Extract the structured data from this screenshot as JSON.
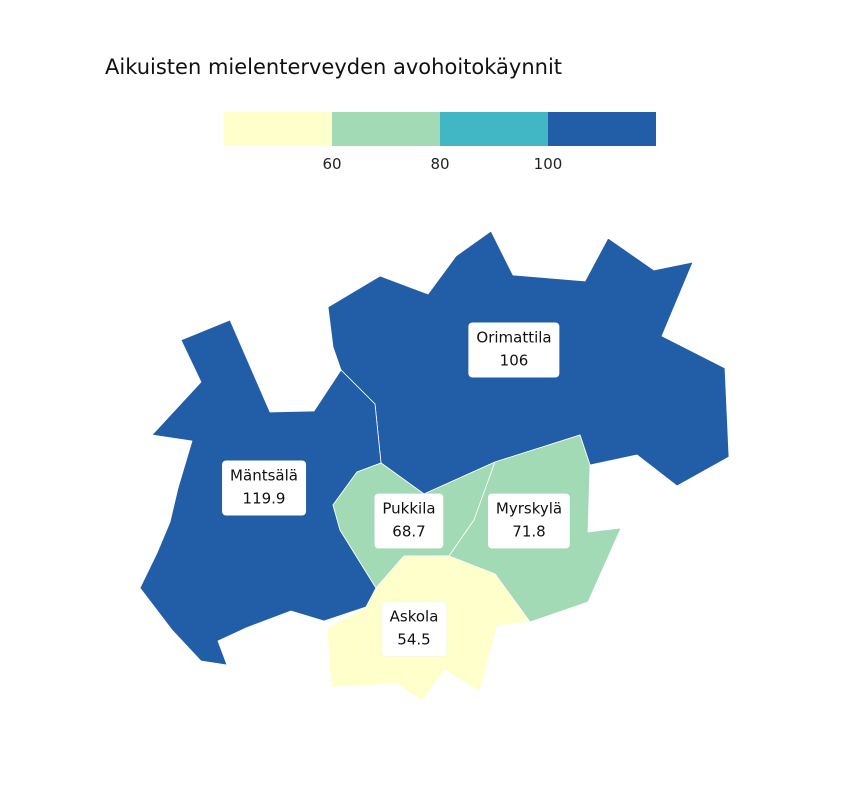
{
  "title": "Aikuisten mielenterveyden avohoitokäynnit",
  "legend": {
    "colors": [
      "#ffffcc",
      "#a1dab4",
      "#41b6c4",
      "#225ea8"
    ],
    "ticks": [
      "60",
      "80",
      "100"
    ],
    "breaks": [
      60,
      80,
      100
    ]
  },
  "regions": {
    "orimattila": {
      "name": "Orimattila",
      "value": "106",
      "color": "#225ea8"
    },
    "mantsala": {
      "name": "Mäntsälä",
      "value": "119.9",
      "color": "#225ea8"
    },
    "pukkila": {
      "name": "Pukkila",
      "value": "68.7",
      "color": "#a1dab4"
    },
    "myrskyla": {
      "name": "Myrskylä",
      "value": "71.8",
      "color": "#a1dab4"
    },
    "askola": {
      "name": "Askola",
      "value": "54.5",
      "color": "#ffffcc"
    }
  }
}
